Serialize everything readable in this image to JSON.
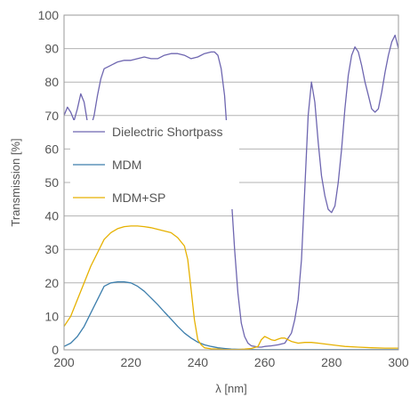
{
  "chart_data": {
    "type": "line",
    "xlabel": "λ [nm]",
    "ylabel": "Transmission [%]",
    "xlim": [
      200,
      300
    ],
    "ylim": [
      0,
      100
    ],
    "xticks": [
      200,
      220,
      240,
      260,
      280,
      300
    ],
    "yticks": [
      0,
      10,
      20,
      30,
      40,
      50,
      60,
      70,
      80,
      90,
      100
    ],
    "grid": "horizontal",
    "legend_position": "left-middle",
    "series": [
      {
        "name": "Dielectric Shortpass",
        "color": "#6e66b0",
        "x": [
          200,
          201,
          202,
          203,
          204,
          205,
          206,
          207,
          208,
          209,
          210,
          211,
          212,
          213,
          214,
          215,
          216,
          218,
          220,
          222,
          224,
          226,
          228,
          230,
          232,
          234,
          236,
          238,
          240,
          242,
          244,
          245,
          246,
          247,
          248,
          249,
          250,
          251,
          252,
          253,
          254,
          255,
          256,
          257,
          258,
          259,
          260,
          262,
          264,
          266,
          268,
          269,
          270,
          271,
          272,
          273,
          274,
          275,
          276,
          277,
          278,
          279,
          280,
          281,
          282,
          283,
          284,
          285,
          286,
          287,
          288,
          289,
          290,
          291,
          292,
          293,
          294,
          295,
          296,
          297,
          298,
          299,
          300
        ],
        "y": [
          70,
          72.5,
          71,
          68.5,
          72,
          76.5,
          74,
          68,
          66.5,
          70,
          76,
          81,
          84,
          84.5,
          85,
          85.5,
          86,
          86.5,
          86.5,
          87,
          87.5,
          87,
          87,
          88,
          88.5,
          88.5,
          88,
          87,
          87.5,
          88.5,
          89,
          89,
          88,
          84,
          76,
          62,
          46,
          30,
          17,
          8,
          4,
          2,
          1.2,
          1,
          0.8,
          0.8,
          1,
          1.2,
          1.5,
          2,
          5,
          9,
          15,
          27,
          48,
          70,
          80,
          74,
          62,
          52,
          46,
          42,
          41,
          43,
          50,
          60,
          72,
          82,
          88,
          90.5,
          89,
          85,
          80,
          76,
          72,
          71,
          72,
          77,
          83,
          88,
          92,
          94,
          90
        ]
      },
      {
        "name": "MDM",
        "color": "#3c7eac",
        "x": [
          200,
          202,
          204,
          206,
          208,
          210,
          212,
          214,
          216,
          218,
          220,
          222,
          224,
          226,
          228,
          230,
          232,
          234,
          236,
          238,
          240,
          242,
          244,
          246,
          248,
          250,
          252,
          254,
          256,
          258,
          260,
          265,
          270,
          280,
          290,
          300
        ],
        "y": [
          1,
          2,
          4,
          7,
          11,
          15,
          19,
          20,
          20.3,
          20.3,
          20,
          19,
          17.5,
          15.5,
          13.5,
          11.3,
          9.2,
          7,
          5,
          3.5,
          2.3,
          1.5,
          1,
          0.6,
          0.4,
          0.2,
          0.15,
          0.1,
          0.08,
          0.05,
          0.05,
          0.05,
          0.05,
          0.05,
          0.05,
          0.05
        ]
      },
      {
        "name": "MDM+SP",
        "color": "#e6b100",
        "x": [
          200,
          202,
          204,
          206,
          208,
          210,
          212,
          214,
          216,
          218,
          220,
          222,
          224,
          226,
          228,
          230,
          232,
          234,
          236,
          237,
          238,
          239,
          240,
          241,
          242,
          244,
          246,
          248,
          250,
          252,
          254,
          256,
          258,
          259,
          260,
          261,
          262,
          263,
          264,
          265,
          266,
          267,
          268,
          270,
          272,
          274,
          276,
          280,
          284,
          288,
          292,
          296,
          300
        ],
        "y": [
          7,
          10,
          15,
          20,
          25,
          29,
          33,
          35,
          36.2,
          36.8,
          37,
          37,
          36.8,
          36.5,
          36,
          35.5,
          35,
          33.5,
          31,
          27,
          18,
          9,
          3,
          1.5,
          0.6,
          0.3,
          0.2,
          0.1,
          0.1,
          0.1,
          0.2,
          0.4,
          1,
          3,
          4,
          3.5,
          3,
          2.8,
          3.2,
          3.5,
          3.5,
          3,
          2.5,
          2,
          2.2,
          2.2,
          2,
          1.5,
          1,
          0.8,
          0.6,
          0.5,
          0.5
        ]
      }
    ]
  }
}
